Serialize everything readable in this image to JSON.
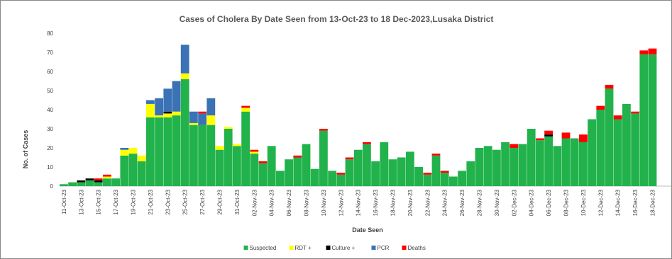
{
  "chart_data": {
    "type": "bar",
    "stacked": true,
    "title": "Cases of Cholera By Date Seen from 13-Oct-23 to 18 Dec-2023,Lusaka District",
    "xlabel": "Date Seen",
    "ylabel": "No. of Cases",
    "ylim": [
      0,
      80
    ],
    "yticks": [
      "0",
      "10",
      "20",
      "30",
      "40",
      "50",
      "60",
      "70",
      "80"
    ],
    "grid": false,
    "legend_position": "bottom",
    "categories": [
      "11-Oct-23",
      "12-Oct-23",
      "13-Oct-23",
      "14-Oct-23",
      "15-Oct-23",
      "16-Oct-23",
      "17-Oct-23",
      "18-Oct-23",
      "19-Oct-23",
      "20-Oct-23",
      "21-Oct-23",
      "22-Oct-23",
      "23-Oct-23",
      "24-Oct-23",
      "25-Oct-23",
      "26-Oct-23",
      "27-Oct-23",
      "28-Oct-23",
      "29-Oct-23",
      "30-Oct-23",
      "31-Oct-23",
      "01-Nov-23",
      "02-Nov-23",
      "03-Nov-23",
      "04-Nov-23",
      "05-Nov-23",
      "06-Nov-23",
      "07-Nov-23",
      "08-Nov-23",
      "09-Nov-23",
      "10-Nov-23",
      "11-Nov-23",
      "12-Nov-23",
      "13-Nov-23",
      "14-Nov-23",
      "15-Nov-23",
      "16-Nov-23",
      "17-Nov-23",
      "18-Nov-23",
      "19-Nov-23",
      "20-Nov-23",
      "21-Nov-23",
      "22-Nov-23",
      "23-Nov-23",
      "24-Nov-23",
      "25-Nov-23",
      "26-Nov-23",
      "27-Nov-23",
      "28-Nov-23",
      "29-Nov-23",
      "30-Nov-23",
      "01-Dec-23",
      "02-Dec-23",
      "03-Dec-23",
      "04-Dec-23",
      "05-Dec-23",
      "06-Dec-23",
      "07-Dec-23",
      "08-Dec-23",
      "09-Dec-23",
      "10-Dec-23",
      "11-Dec-23",
      "12-Dec-23",
      "13-Dec-23",
      "14-Dec-23",
      "15-Dec-23",
      "16-Dec-23",
      "17-Dec-23",
      "18-Dec-23"
    ],
    "tick_labels": [
      "11-Oct-23",
      "13-Oct-23",
      "15-Oct-23",
      "17-Oct-23",
      "19-Oct-23",
      "21-Oct-23",
      "23-Oct-23",
      "25-Oct-23",
      "27-Oct-23",
      "29-Oct-23",
      "31-Oct-23",
      "02-Nov-23",
      "04-Nov-23",
      "06-Nov-23",
      "08-Nov-23",
      "10-Nov-23",
      "12-Nov-23",
      "14-Nov-23",
      "16-Nov-23",
      "18-Nov-23",
      "20-Nov-23",
      "22-Nov-23",
      "24-Nov-23",
      "26-Nov-23",
      "28-Nov-23",
      "30-Nov-23",
      "02-Dec-23",
      "04-Dec-23",
      "06-Dec-23",
      "08-Dec-23",
      "10-Dec-23",
      "12-Dec-23",
      "14-Dec-23",
      "16-Dec-23",
      "18-Dec-23"
    ],
    "series": [
      {
        "name": "Suspected",
        "color": "#22b24c",
        "values": [
          1,
          2,
          2,
          3,
          2,
          4,
          4,
          16,
          17,
          13,
          36,
          36,
          36,
          37,
          56,
          32,
          32,
          32,
          19,
          30,
          21,
          39,
          17,
          12,
          21,
          8,
          14,
          15,
          22,
          9,
          29,
          8,
          6,
          14,
          19,
          22,
          13,
          23,
          14,
          15,
          18,
          10,
          6,
          16,
          7,
          5,
          8,
          13,
          20,
          21,
          19,
          23,
          20,
          22,
          30,
          24,
          26,
          21,
          25,
          25,
          23,
          35,
          40,
          51,
          35,
          43,
          38,
          69,
          69
        ]
      },
      {
        "name": "RDT +",
        "color": "#ffff00",
        "values": [
          0,
          0,
          0,
          0,
          0,
          1,
          0,
          3,
          3,
          3,
          7,
          1,
          2,
          2,
          3,
          1,
          0,
          5,
          2,
          1,
          1,
          2,
          1,
          0,
          0,
          0,
          0,
          0,
          0,
          0,
          0,
          0,
          0,
          0,
          0,
          0,
          0,
          0,
          0,
          0,
          0,
          0,
          0,
          0,
          0,
          0,
          0,
          0,
          0,
          0,
          0,
          0,
          0,
          0,
          0,
          0,
          0,
          0,
          0,
          0,
          0,
          0,
          0,
          0,
          0,
          0,
          0,
          0,
          0
        ]
      },
      {
        "name": "Culture +",
        "color": "#000000",
        "values": [
          0,
          0,
          1,
          1,
          1,
          0,
          0,
          0,
          0,
          0,
          0,
          0,
          1,
          0,
          0,
          0,
          0,
          0,
          0,
          0,
          0,
          0,
          0,
          0,
          0,
          0,
          0,
          0,
          0,
          0,
          0,
          0,
          0,
          0,
          0,
          0,
          0,
          0,
          0,
          0,
          0,
          0,
          0,
          0,
          0,
          0,
          0,
          0,
          0,
          0,
          0,
          0,
          0,
          0,
          0,
          0,
          1,
          0,
          0,
          0,
          0,
          0,
          0,
          0,
          0,
          0,
          0,
          0,
          0
        ]
      },
      {
        "name": "PCR",
        "color": "#3a72b5",
        "values": [
          0,
          0,
          0,
          0,
          0,
          0,
          0,
          1,
          0,
          0,
          2,
          9,
          12,
          16,
          15,
          6,
          6,
          9,
          0,
          0,
          0,
          0,
          0,
          0,
          0,
          0,
          0,
          0,
          0,
          0,
          0,
          0,
          0,
          0,
          0,
          0,
          0,
          0,
          0,
          0,
          0,
          0,
          0,
          0,
          0,
          0,
          0,
          0,
          0,
          0,
          0,
          0,
          0,
          0,
          0,
          0,
          0,
          0,
          0,
          0,
          0,
          0,
          0,
          0,
          0,
          0,
          0,
          0,
          0
        ]
      },
      {
        "name": "Deaths",
        "color": "#ff0000",
        "values": [
          0,
          0,
          0,
          0,
          1,
          1,
          0,
          0,
          0,
          0,
          0,
          0,
          0,
          0,
          0,
          0,
          1,
          0,
          0,
          0,
          0,
          1,
          1,
          1,
          0,
          0,
          0,
          1,
          0,
          0,
          1,
          0,
          1,
          1,
          0,
          1,
          0,
          0,
          0,
          0,
          0,
          0,
          1,
          1,
          1,
          0,
          0,
          0,
          0,
          0,
          0,
          0,
          2,
          0,
          0,
          1,
          2,
          0,
          3,
          0,
          4,
          0,
          2,
          2,
          2,
          0,
          1,
          2,
          3
        ]
      }
    ]
  }
}
